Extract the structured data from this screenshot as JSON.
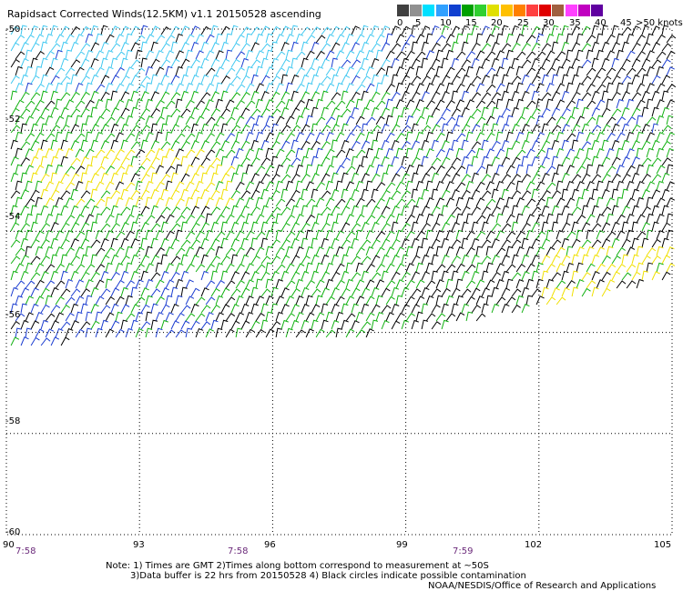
{
  "title": "Rapidsact Corrected Winds(12.5KM) v1.1 20150528 ascending",
  "legend": {
    "labels": [
      "0",
      "5",
      "10",
      "15",
      "20",
      "25",
      "30",
      "35",
      "40",
      "45",
      ">50 knots"
    ],
    "colors": [
      "#404040",
      "#909090",
      "#00e0ff",
      "#30a0ff",
      "#1040d0",
      "#00a000",
      "#30d030",
      "#e0e000",
      "#ffc000",
      "#ff8000",
      "#ff4040",
      "#e00000",
      "#a06040",
      "#ff40ff",
      "#c000c0",
      "#6000a0"
    ]
  },
  "wind_colors": {
    "calm": "#000000",
    "light_cyan": "#40c8f0",
    "blue": "#1a3cd0",
    "green": "#10b010",
    "yellow": "#f0e000"
  },
  "axes": {
    "lon_range": [
      90,
      105
    ],
    "lat_range": [
      -60,
      -50
    ],
    "lon_labels": [
      "90",
      "93",
      "96",
      "99",
      "102",
      "105"
    ],
    "lat_labels": [
      "-50",
      "-52",
      "-54",
      "-56",
      "-58",
      "-60"
    ]
  },
  "times": [
    "7:58",
    "7:58",
    "7:59"
  ],
  "notes": [
    "Note: 1) Times are GMT 2)Times along bottom correspond to measurement at ~50S",
    "3)Data buffer is 22 hrs from 20150528 4) Black circles indicate possible contamination",
    "NOAA/NESDIS/Office of Research and Applications"
  ]
}
